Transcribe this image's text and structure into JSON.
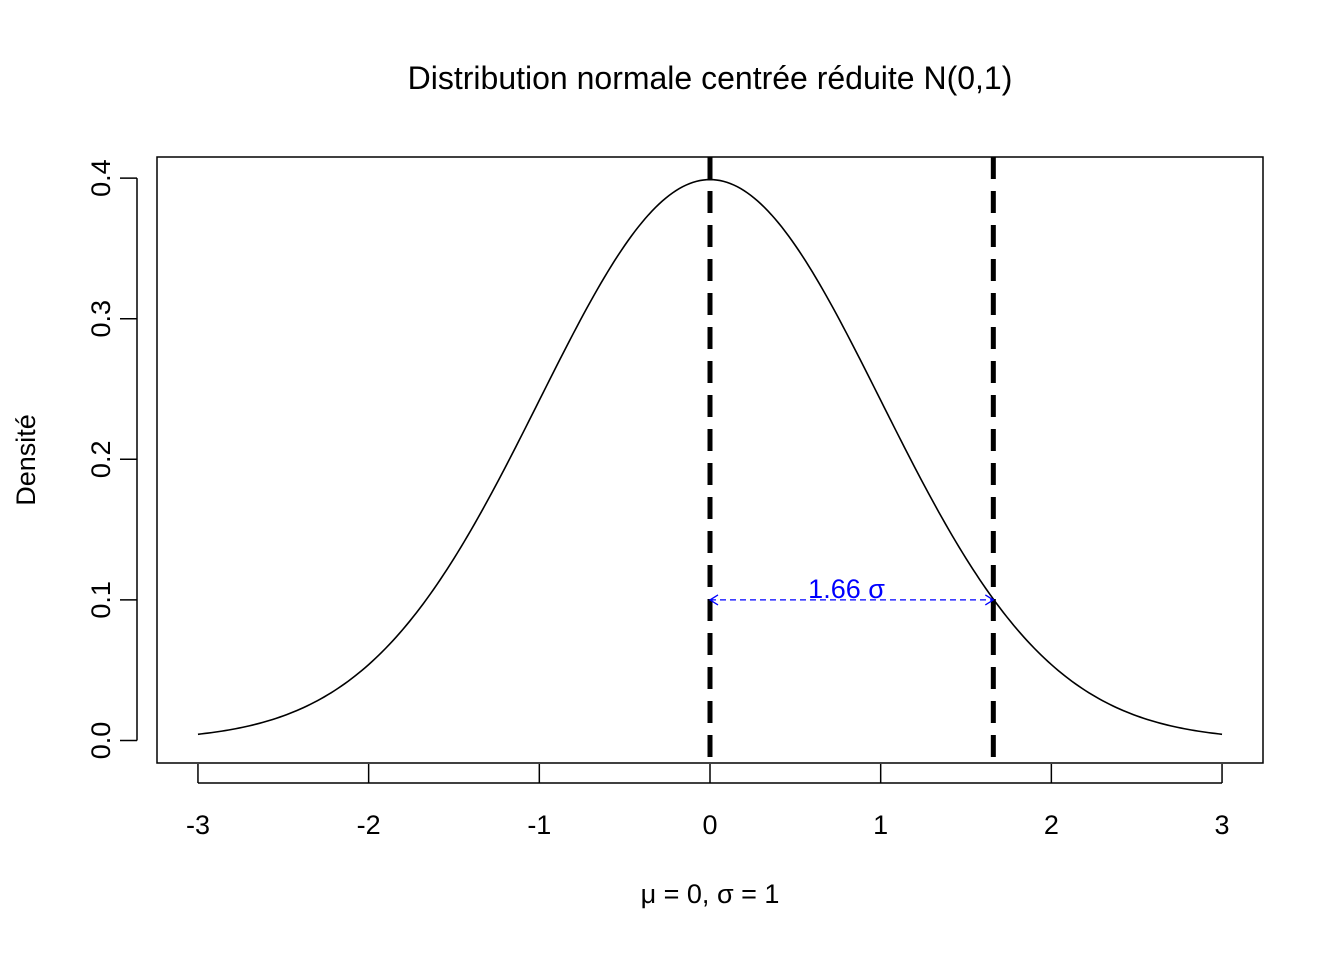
{
  "chart_data": {
    "type": "line",
    "title": "Distribution normale centrée réduite N(0,1)",
    "xlabel": "μ = 0, σ = 1",
    "ylabel": "Densité",
    "xlim": [
      -3.24,
      3.24
    ],
    "ylim": [
      -0.016,
      0.415
    ],
    "x_ticks": [
      -3,
      -2,
      -1,
      0,
      1,
      2,
      3
    ],
    "x_tick_labels": [
      "-3",
      "-2",
      "-1",
      "0",
      "1",
      "2",
      "3"
    ],
    "y_ticks": [
      0.0,
      0.1,
      0.2,
      0.3,
      0.4
    ],
    "y_tick_labels": [
      "0.0",
      "0.1",
      "0.2",
      "0.3",
      "0.4"
    ],
    "grid": false,
    "series": [
      {
        "function": "normal_pdf",
        "mean": 0,
        "sd": 1,
        "x_range": [
          -3,
          3
        ],
        "color": "#000000"
      }
    ],
    "vlines": [
      {
        "x": 0,
        "style": "dashed",
        "color": "#000000"
      },
      {
        "x": 1.66,
        "style": "dashed",
        "color": "#000000"
      }
    ],
    "annotations": [
      {
        "type": "double-arrow",
        "x_start": 0,
        "x_end": 1.66,
        "y": 0.1,
        "label": "1.66 σ",
        "label_x": 0.8,
        "color": "#0000ff"
      }
    ]
  }
}
